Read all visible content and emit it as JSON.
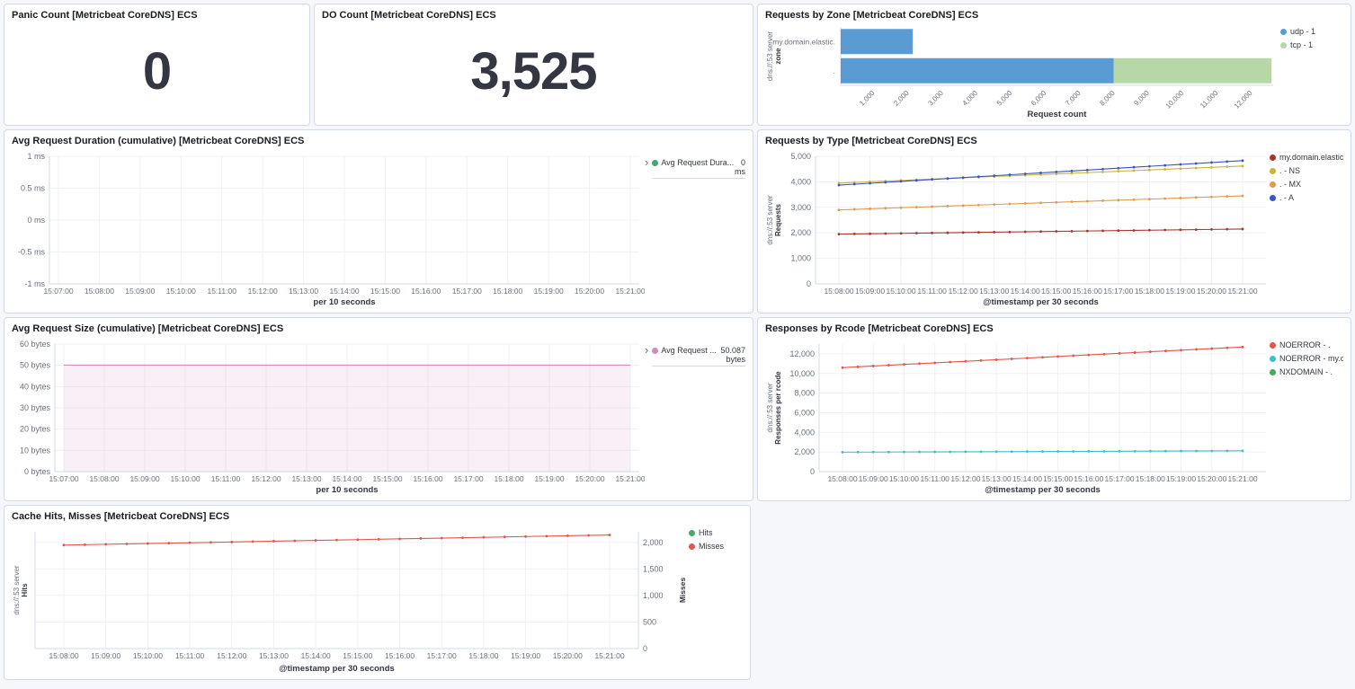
{
  "panels": {
    "panic_count": {
      "title": "Panic Count [Metricbeat CoreDNS] ECS",
      "value": "0"
    },
    "do_count": {
      "title": "DO Count [Metricbeat CoreDNS] ECS",
      "value": "3,525"
    },
    "requests_by_zone": {
      "title": "Requests by Zone [Metricbeat CoreDNS] ECS"
    },
    "avg_request_duration": {
      "title": "Avg Request Duration (cumulative) [Metricbeat CoreDNS] ECS",
      "expand_icon": "›",
      "legend_name": "Avg Request Dura...",
      "legend_value": "0",
      "legend_unit": "ms",
      "legend_color": "#3cab6e"
    },
    "requests_by_type": {
      "title": "Requests by Type [Metricbeat CoreDNS] ECS"
    },
    "avg_request_size": {
      "title": "Avg Request Size (cumulative) [Metricbeat CoreDNS] ECS",
      "expand_icon": "›",
      "legend_name": "Avg Request ...",
      "legend_value": "50.087",
      "legend_unit": "bytes",
      "legend_color": "#d48abf"
    },
    "responses_by_rcode": {
      "title": "Responses by Rcode [Metricbeat CoreDNS] ECS"
    },
    "cache_hits_misses": {
      "title": "Cache Hits, Misses [Metricbeat CoreDNS] ECS"
    }
  },
  "chart_data": [
    {
      "id": "requests_by_zone",
      "type": "bar",
      "orientation": "horizontal",
      "categories": [
        "my.domain.elastic.",
        "."
      ],
      "series": [
        {
          "name": "udp - 1",
          "color": "#5a9bd4",
          "values": [
            2100,
            7950
          ]
        },
        {
          "name": "tcp - 1",
          "color": "#b5d8a6",
          "values": [
            0,
            4600
          ]
        }
      ],
      "xlim": [
        0,
        12600
      ],
      "xticks": [
        1000,
        2000,
        3000,
        4000,
        5000,
        6000,
        7000,
        8000,
        9000,
        10000,
        11000,
        12000
      ],
      "xtick_labels": [
        "1,000",
        "2,000",
        "3,000",
        "4,000",
        "5,000",
        "6,000",
        "7,000",
        "8,000",
        "9,000",
        "10,000",
        "11,000",
        "12,000"
      ],
      "xlabel": "Request count",
      "ylabel_lines": [
        "dns://:53 server",
        "zone"
      ],
      "legend_position": "right",
      "margins": {
        "l": 84,
        "r": 8,
        "t": 4,
        "b": 38
      }
    },
    {
      "id": "avg_request_duration",
      "type": "line",
      "x": [
        "15:07:00",
        "15:08:00",
        "15:09:00",
        "15:10:00",
        "15:11:00",
        "15:12:00",
        "15:13:00",
        "15:14:00",
        "15:15:00",
        "15:16:00",
        "15:17:00",
        "15:18:00",
        "15:19:00",
        "15:20:00",
        "15:21:00"
      ],
      "ylim": [
        -1,
        1
      ],
      "yticks": [
        1,
        0.5,
        0,
        -0.5,
        -1
      ],
      "ytick_labels": [
        "1 ms",
        "0.5 ms",
        "0 ms",
        "-0.5 ms",
        "-1 ms"
      ],
      "xlabel": "per 10 seconds",
      "series": [
        {
          "name": "Avg Request Dura...",
          "color": "#3cab6e",
          "current": "0 ms",
          "values": []
        }
      ],
      "legend_position": "right-sidebar",
      "markers": false,
      "xpad": 10,
      "margins": {
        "l": 42,
        "r": 6,
        "t": 8,
        "b": 26
      }
    },
    {
      "id": "requests_by_type",
      "type": "line",
      "x": [
        "15:08:00",
        "15:09:00",
        "15:10:00",
        "15:11:00",
        "15:12:00",
        "15:13:00",
        "15:14:00",
        "15:15:00",
        "15:16:00",
        "15:17:00",
        "15:18:00",
        "15:19:00",
        "15:20:00",
        "15:21:00"
      ],
      "ylim": [
        0,
        5000
      ],
      "yticks": [
        0,
        1000,
        2000,
        3000,
        4000,
        5000
      ],
      "ytick_labels": [
        "0",
        "1,000",
        "2,000",
        "3,000",
        "4,000",
        "5,000"
      ],
      "xlabel": "@timestamp per 30 seconds",
      "ylabel_lines": [
        "dns://:53 server",
        "Requests"
      ],
      "legend_position": "right",
      "markers": true,
      "xpad": 26,
      "margins": {
        "l": 56,
        "r": 4,
        "t": 8,
        "b": 26
      },
      "series": [
        {
          "name": "my.domain.elastic. - A",
          "color": "#a8352f",
          "values": [
            1950,
            1965,
            1981,
            1996,
            2012,
            2027,
            2042,
            2058,
            2073,
            2088,
            2104,
            2119,
            2135,
            2150
          ]
        },
        {
          "name": ". - NS",
          "color": "#cdb33c",
          "values": [
            3950,
            4002,
            4053,
            4105,
            4156,
            4208,
            4259,
            4311,
            4362,
            4414,
            4465,
            4517,
            4568,
            4620
          ]
        },
        {
          "name": ". - MX",
          "color": "#e29a4e",
          "values": [
            2900,
            2942,
            2985,
            3027,
            3069,
            3112,
            3154,
            3196,
            3238,
            3281,
            3323,
            3365,
            3408,
            3450
          ]
        },
        {
          "name": ". - A",
          "color": "#3c55bc",
          "values": [
            3870,
            3944,
            4018,
            4092,
            4165,
            4239,
            4313,
            4387,
            4461,
            4534,
            4608,
            4682,
            4756,
            4830
          ]
        }
      ]
    },
    {
      "id": "avg_request_size",
      "type": "area",
      "x": [
        "15:07:00",
        "15:08:00",
        "15:09:00",
        "15:10:00",
        "15:11:00",
        "15:12:00",
        "15:13:00",
        "15:14:00",
        "15:15:00",
        "15:16:00",
        "15:17:00",
        "15:18:00",
        "15:19:00",
        "15:20:00",
        "15:21:00"
      ],
      "ylim": [
        0,
        60
      ],
      "yticks": [
        60,
        50,
        40,
        30,
        20,
        10,
        0
      ],
      "ytick_labels": [
        "60 bytes",
        "50 bytes",
        "40 bytes",
        "30 bytes",
        "20 bytes",
        "10 bytes",
        "0 bytes"
      ],
      "xlabel": "per 10 seconds",
      "legend_position": "right-sidebar",
      "markers": false,
      "area": true,
      "xpad": 10,
      "margins": {
        "l": 48,
        "r": 6,
        "t": 8,
        "b": 26
      },
      "series": [
        {
          "name": "Avg Request ...",
          "color": "#d48abf",
          "fill": "rgba(212,138,191,0.13)",
          "current": "50.087 bytes",
          "values": [
            50.087,
            50.087,
            50.087,
            50.087,
            50.087,
            50.087,
            50.087,
            50.087,
            50.087,
            50.087,
            50.087,
            50.087,
            50.087,
            50.087,
            50.087
          ]
        }
      ]
    },
    {
      "id": "responses_by_rcode",
      "type": "line",
      "x": [
        "15:08:00",
        "15:09:00",
        "15:10:00",
        "15:11:00",
        "15:12:00",
        "15:13:00",
        "15:14:00",
        "15:15:00",
        "15:16:00",
        "15:17:00",
        "15:18:00",
        "15:19:00",
        "15:20:00",
        "15:21:00"
      ],
      "ylim": [
        0,
        13000
      ],
      "yticks": [
        0,
        2000,
        4000,
        6000,
        8000,
        10000,
        12000
      ],
      "ytick_labels": [
        "0",
        "2,000",
        "4,000",
        "6,000",
        "8,000",
        "10,000",
        "12,000"
      ],
      "xlabel": "@timestamp per 30 seconds",
      "ylabel_lines": [
        "dns://:53 server",
        "Responses per rcode"
      ],
      "legend_position": "right",
      "markers": true,
      "xpad": 26,
      "margins": {
        "l": 60,
        "r": 4,
        "t": 8,
        "b": 26
      },
      "series": [
        {
          "name": "NOERROR - .",
          "color": "#e4564a",
          "values": [
            10600,
            10762,
            10923,
            11085,
            11246,
            11408,
            11569,
            11731,
            11892,
            12054,
            12215,
            12377,
            12538,
            12700
          ]
        },
        {
          "name": "NOERROR - my.dom...",
          "color": "#3fbfc8",
          "values": [
            1980,
            1991,
            2002,
            2012,
            2023,
            2034,
            2045,
            2056,
            2066,
            2077,
            2088,
            2099,
            2109,
            2120
          ]
        },
        {
          "name": "NXDOMAIN - .",
          "color": "#43a85c",
          "values": []
        }
      ]
    },
    {
      "id": "cache_hits_misses",
      "type": "line",
      "x": [
        "15:08:00",
        "15:09:00",
        "15:10:00",
        "15:11:00",
        "15:12:00",
        "15:13:00",
        "15:14:00",
        "15:15:00",
        "15:16:00",
        "15:17:00",
        "15:18:00",
        "15:19:00",
        "15:20:00",
        "15:21:00"
      ],
      "ylim": [
        0,
        2200
      ],
      "yticks": [
        0,
        500,
        1000,
        1500,
        2000
      ],
      "ytick_labels": [
        "0",
        "500",
        "1,000",
        "1,500",
        "2,000"
      ],
      "yticks_side": "right",
      "xlabel": "@timestamp per 30 seconds",
      "ylabel_lines": [
        "dns://:53 server",
        "Hits"
      ],
      "ylabel_right": "Misses",
      "legend_position": "right",
      "markers": true,
      "xpad": 32,
      "margins": {
        "l": 26,
        "r": 56,
        "t": 8,
        "b": 28
      },
      "series": [
        {
          "name": "Hits",
          "color": "#4ba965",
          "values": []
        },
        {
          "name": "Misses",
          "color": "#e2564e",
          "values": [
            1950,
            1965,
            1979,
            1994,
            2008,
            2023,
            2038,
            2052,
            2067,
            2081,
            2096,
            2111,
            2125,
            2140
          ]
        }
      ]
    }
  ]
}
